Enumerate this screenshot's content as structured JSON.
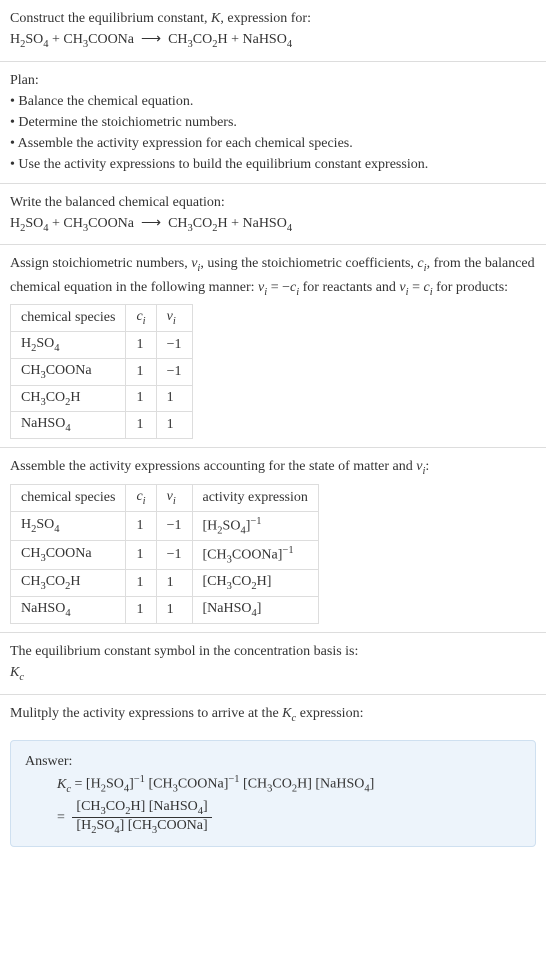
{
  "header": {
    "title_prefix": "Construct the equilibrium constant, ",
    "title_k": "K",
    "title_suffix": ", expression for:",
    "equation_html": "H<sub>2</sub>SO<sub>4</sub> + CH<sub>3</sub>COONa &nbsp;⟶&nbsp; CH<sub>3</sub>CO<sub>2</sub>H + NaHSO<sub>4</sub>"
  },
  "plan": {
    "heading": "Plan:",
    "items": [
      "• Balance the chemical equation.",
      "• Determine the stoichiometric numbers.",
      "• Assemble the activity expression for each chemical species.",
      "• Use the activity expressions to build the equilibrium constant expression."
    ]
  },
  "balanced": {
    "heading": "Write the balanced chemical equation:",
    "equation_html": "H<sub>2</sub>SO<sub>4</sub> + CH<sub>3</sub>COONa &nbsp;⟶&nbsp; CH<sub>3</sub>CO<sub>2</sub>H + NaHSO<sub>4</sub>"
  },
  "stoich": {
    "intro_html": "Assign stoichiometric numbers, <span class=\"italic\">ν<sub>i</sub></span>, using the stoichiometric coefficients, <span class=\"italic\">c<sub>i</sub></span>, from the balanced chemical equation in the following manner: <span class=\"italic\">ν<sub>i</sub></span> = −<span class=\"italic\">c<sub>i</sub></span> for reactants and <span class=\"italic\">ν<sub>i</sub></span> = <span class=\"italic\">c<sub>i</sub></span> for products:",
    "headers": [
      "chemical species",
      "c<sub>i</sub>",
      "ν<sub>i</sub>"
    ],
    "rows": [
      [
        "H<sub>2</sub>SO<sub>4</sub>",
        "1",
        "−1"
      ],
      [
        "CH<sub>3</sub>COONa",
        "1",
        "−1"
      ],
      [
        "CH<sub>3</sub>CO<sub>2</sub>H",
        "1",
        "1"
      ],
      [
        "NaHSO<sub>4</sub>",
        "1",
        "1"
      ]
    ]
  },
  "activity": {
    "intro_html": "Assemble the activity expressions accounting for the state of matter and <span class=\"italic\">ν<sub>i</sub></span>:",
    "headers": [
      "chemical species",
      "c<sub>i</sub>",
      "ν<sub>i</sub>",
      "activity expression"
    ],
    "rows": [
      [
        "H<sub>2</sub>SO<sub>4</sub>",
        "1",
        "−1",
        "[H<sub>2</sub>SO<sub>4</sub>]<sup>−1</sup>"
      ],
      [
        "CH<sub>3</sub>COONa",
        "1",
        "−1",
        "[CH<sub>3</sub>COONa]<sup>−1</sup>"
      ],
      [
        "CH<sub>3</sub>CO<sub>2</sub>H",
        "1",
        "1",
        "[CH<sub>3</sub>CO<sub>2</sub>H]"
      ],
      [
        "NaHSO<sub>4</sub>",
        "1",
        "1",
        "[NaHSO<sub>4</sub>]"
      ]
    ]
  },
  "kc_symbol": {
    "line1": "The equilibrium constant symbol in the concentration basis is:",
    "line2_html": "<span class=\"italic\">K<sub>c</sub></span>"
  },
  "multiply": {
    "text_html": "Mulitply the activity expressions to arrive at the <span class=\"italic\">K<sub>c</sub></span> expression:"
  },
  "answer": {
    "label": "Answer:",
    "line1_html": "<span class=\"italic\">K<sub>c</sub></span> = [H<sub>2</sub>SO<sub>4</sub>]<sup>−1</sup> [CH<sub>3</sub>COONa]<sup>−1</sup> [CH<sub>3</sub>CO<sub>2</sub>H] [NaHSO<sub>4</sub>]",
    "frac_num_html": "[CH<sub>3</sub>CO<sub>2</sub>H] [NaHSO<sub>4</sub>]",
    "frac_den_html": "[H<sub>2</sub>SO<sub>4</sub>] [CH<sub>3</sub>COONa]"
  }
}
